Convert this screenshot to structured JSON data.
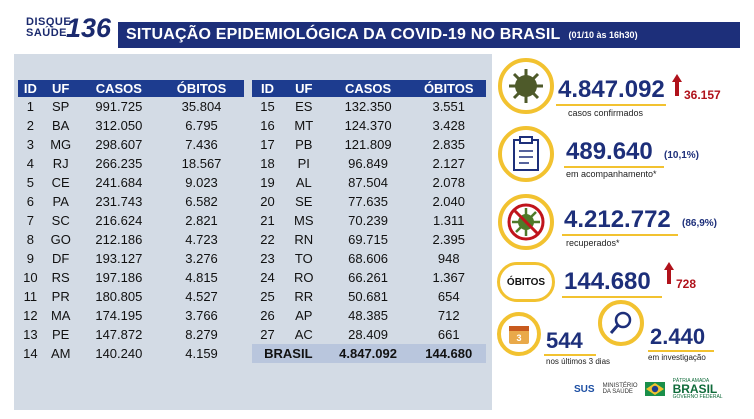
{
  "logo": {
    "disque": "DISQUE",
    "saude": "SAÚDE",
    "number": "136"
  },
  "title": {
    "main": "SITUAÇÃO EPIDEMIOLÓGICA DA COVID-19 NO BRASIL",
    "date": "(01/10 às 16h30)"
  },
  "table": {
    "headers": [
      "ID",
      "UF",
      "CASOS",
      "ÓBITOS"
    ],
    "left": [
      [
        "1",
        "SP",
        "991.725",
        "35.804"
      ],
      [
        "2",
        "BA",
        "312.050",
        "6.795"
      ],
      [
        "3",
        "MG",
        "298.607",
        "7.436"
      ],
      [
        "4",
        "RJ",
        "266.235",
        "18.567"
      ],
      [
        "5",
        "CE",
        "241.684",
        "9.023"
      ],
      [
        "6",
        "PA",
        "231.743",
        "6.582"
      ],
      [
        "7",
        "SC",
        "216.624",
        "2.821"
      ],
      [
        "8",
        "GO",
        "212.186",
        "4.723"
      ],
      [
        "9",
        "DF",
        "193.127",
        "3.276"
      ],
      [
        "10",
        "RS",
        "197.186",
        "4.815"
      ],
      [
        "11",
        "PR",
        "180.805",
        "4.527"
      ],
      [
        "12",
        "MA",
        "174.195",
        "3.766"
      ],
      [
        "13",
        "PE",
        "147.872",
        "8.279"
      ],
      [
        "14",
        "AM",
        "140.240",
        "4.159"
      ]
    ],
    "right": [
      [
        "15",
        "ES",
        "132.350",
        "3.551"
      ],
      [
        "16",
        "MT",
        "124.370",
        "3.428"
      ],
      [
        "17",
        "PB",
        "121.809",
        "2.835"
      ],
      [
        "18",
        "PI",
        "96.849",
        "2.127"
      ],
      [
        "19",
        "AL",
        "87.504",
        "2.078"
      ],
      [
        "20",
        "SE",
        "77.635",
        "2.040"
      ],
      [
        "21",
        "MS",
        "70.239",
        "1.311"
      ],
      [
        "22",
        "RN",
        "69.715",
        "2.395"
      ],
      [
        "23",
        "TO",
        "68.606",
        "948"
      ],
      [
        "24",
        "RO",
        "66.261",
        "1.367"
      ],
      [
        "25",
        "RR",
        "50.681",
        "654"
      ],
      [
        "26",
        "AP",
        "48.385",
        "712"
      ],
      [
        "27",
        "AC",
        "28.409",
        "661"
      ]
    ],
    "total": {
      "label": "BRASIL",
      "casos": "4.847.092",
      "obitos": "144.680"
    }
  },
  "stats": {
    "confirmed": {
      "value": "4.847.092",
      "delta": "36.157",
      "label": "casos confirmados",
      "icon": "virus-icon"
    },
    "monitoring": {
      "value": "489.640",
      "pct": "(10,1%)",
      "label": "em acompanhamento*",
      "icon": "clipboard-icon"
    },
    "recovered": {
      "value": "4.212.772",
      "pct": "(86,9%)",
      "label": "recuperados*",
      "icon": "crossed-virus-icon"
    },
    "deaths": {
      "badge": "ÓBITOS",
      "value": "144.680",
      "delta": "728"
    },
    "last3": {
      "value": "544",
      "label": "nos últimos 3 dias",
      "icon": "calendar-icon",
      "badge": "3"
    },
    "investigation": {
      "value": "2.440",
      "label": "em investigação",
      "icon": "magnifier-icon"
    }
  },
  "footer": {
    "sus": "SUS",
    "ministerio": "MINISTÉRIO DA SAÚDE",
    "patria": "PÁTRIA AMADA",
    "brasil": "BRASIL",
    "gov": "GOVERNO FEDERAL"
  },
  "colors": {
    "navy": "#1d2f7a",
    "header_blue": "#1d3c8f",
    "panel": "#d3dbe5",
    "yellow": "#f2c230",
    "red": "#b0121b",
    "green": "#4e7a2a"
  }
}
